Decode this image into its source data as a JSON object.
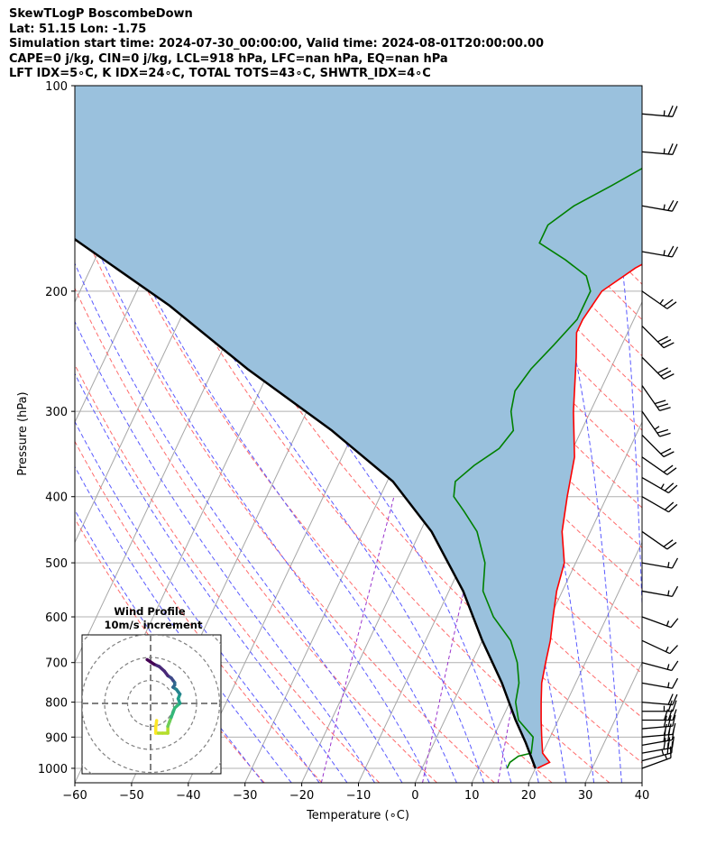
{
  "header": {
    "line1": "SkewTLogP BoscombeDown",
    "line2": "Lat: 51.15   Lon: -1.75",
    "line3": "Simulation start time: 2024-07-30_00:00:00, Valid time: 2024-08-01T20:00:00.00",
    "line4": "CAPE=0 j/kg, CIN=0 j/kg, LCL=918 hPa, LFC=nan hPa, EQ=nan hPa",
    "line5": "LFT IDX=5∘C, K IDX=24∘C, TOTAL TOTS=43∘C, SHWTR_IDX=4∘C"
  },
  "chart_data": {
    "type": "line",
    "xlabel": "Temperature (∘C)",
    "ylabel": "Pressure (hPa)",
    "xlim": [
      -60,
      40
    ],
    "ylim": [
      1050,
      100
    ],
    "y_log_scale": true,
    "skew": true,
    "x_ticks": [
      -60,
      -50,
      -40,
      -30,
      -20,
      -10,
      0,
      10,
      20,
      30,
      40
    ],
    "y_ticks": [
      100,
      200,
      300,
      400,
      500,
      600,
      700,
      800,
      900,
      1000
    ],
    "grid": true,
    "series": [
      {
        "color": "#ff0000",
        "points": [
          [
            20.3,
            1000
          ],
          [
            22,
            980
          ],
          [
            20,
            950
          ],
          [
            18.5,
            900
          ],
          [
            17,
            850
          ],
          [
            15.5,
            800
          ],
          [
            14,
            750
          ],
          [
            13,
            700
          ],
          [
            12,
            650
          ],
          [
            10.5,
            600
          ],
          [
            9,
            550
          ],
          [
            8,
            500
          ],
          [
            5,
            450
          ],
          [
            3,
            400
          ],
          [
            1,
            350
          ],
          [
            -3,
            300
          ],
          [
            -7,
            250
          ],
          [
            -9,
            230
          ],
          [
            -9,
            220
          ],
          [
            -8,
            200
          ],
          [
            -4,
            185
          ],
          [
            2,
            170
          ],
          [
            4,
            160
          ],
          [
            4,
            150
          ],
          [
            7,
            140
          ],
          [
            11,
            130
          ],
          [
            11,
            120
          ],
          [
            12,
            110
          ],
          [
            14,
            100
          ]
        ]
      },
      {
        "color": "#008000",
        "points": [
          [
            15,
            1000
          ],
          [
            15,
            980
          ],
          [
            16,
            960
          ],
          [
            18,
            950
          ],
          [
            17,
            900
          ],
          [
            13,
            850
          ],
          [
            11,
            800
          ],
          [
            10,
            750
          ],
          [
            8,
            700
          ],
          [
            5,
            650
          ],
          [
            0,
            600
          ],
          [
            -4,
            550
          ],
          [
            -6,
            500
          ],
          [
            -10,
            450
          ],
          [
            -14,
            420
          ],
          [
            -17,
            400
          ],
          [
            -18,
            380
          ],
          [
            -16,
            360
          ],
          [
            -13,
            340
          ],
          [
            -12,
            320
          ],
          [
            -14,
            300
          ],
          [
            -15,
            280
          ],
          [
            -14,
            260
          ],
          [
            -12,
            240
          ],
          [
            -10,
            220
          ],
          [
            -10,
            200
          ],
          [
            -12,
            190
          ],
          [
            -17,
            180
          ],
          [
            -23,
            170
          ],
          [
            -23,
            160
          ],
          [
            -20,
            150
          ],
          [
            -15,
            140
          ],
          [
            -10,
            130
          ],
          [
            -7,
            120
          ],
          [
            -3,
            110
          ],
          [
            0,
            100
          ]
        ]
      },
      {
        "color": "#000000",
        "points": [
          [
            20,
            1000
          ],
          [
            16.2,
            918
          ],
          [
            12.5,
            850
          ],
          [
            7,
            750
          ],
          [
            0,
            650
          ],
          [
            -7.5,
            550
          ],
          [
            -18,
            450
          ],
          [
            -29,
            380
          ],
          [
            -44,
            320
          ],
          [
            -64,
            260
          ],
          [
            -83,
            210
          ],
          [
            -104,
            170
          ],
          [
            -123,
            140
          ],
          [
            -140,
            120
          ],
          [
            -159,
            100
          ]
        ]
      }
    ],
    "shaded_region": {
      "color": "#9ac1dd",
      "between": "temperature and parcel"
    },
    "isotherms": {
      "color": "#999999",
      "step_c": 10
    },
    "dry_adiabats": {
      "color": "#ff4444",
      "style": "dashed"
    },
    "moist_adiabats": {
      "color": "#4444ff",
      "style": "dashed"
    },
    "mixing_ratio": {
      "color": "#9932cc",
      "style": "dashed"
    },
    "wind_barbs": [
      {
        "p": 1000,
        "speed_kt": 15,
        "dir_deg": 250
      },
      {
        "p": 975,
        "speed_kt": 25,
        "dir_deg": 255
      },
      {
        "p": 950,
        "speed_kt": 30,
        "dir_deg": 260
      },
      {
        "p": 925,
        "speed_kt": 30,
        "dir_deg": 260
      },
      {
        "p": 900,
        "speed_kt": 30,
        "dir_deg": 265
      },
      {
        "p": 875,
        "speed_kt": 30,
        "dir_deg": 265
      },
      {
        "p": 850,
        "speed_kt": 30,
        "dir_deg": 270
      },
      {
        "p": 825,
        "speed_kt": 25,
        "dir_deg": 270
      },
      {
        "p": 800,
        "speed_kt": 20,
        "dir_deg": 275
      },
      {
        "p": 750,
        "speed_kt": 15,
        "dir_deg": 280
      },
      {
        "p": 700,
        "speed_kt": 15,
        "dir_deg": 285
      },
      {
        "p": 650,
        "speed_kt": 15,
        "dir_deg": 295
      },
      {
        "p": 600,
        "speed_kt": 15,
        "dir_deg": 290
      },
      {
        "p": 550,
        "speed_kt": 15,
        "dir_deg": 280
      },
      {
        "p": 500,
        "speed_kt": 15,
        "dir_deg": 280
      },
      {
        "p": 450,
        "speed_kt": 20,
        "dir_deg": 305
      },
      {
        "p": 400,
        "speed_kt": 20,
        "dir_deg": 300
      },
      {
        "p": 375,
        "speed_kt": 25,
        "dir_deg": 300
      },
      {
        "p": 350,
        "speed_kt": 20,
        "dir_deg": 305
      },
      {
        "p": 325,
        "speed_kt": 20,
        "dir_deg": 315
      },
      {
        "p": 300,
        "speed_kt": 25,
        "dir_deg": 325
      },
      {
        "p": 275,
        "speed_kt": 30,
        "dir_deg": 325
      },
      {
        "p": 250,
        "speed_kt": 30,
        "dir_deg": 315
      },
      {
        "p": 225,
        "speed_kt": 30,
        "dir_deg": 315
      },
      {
        "p": 200,
        "speed_kt": 25,
        "dir_deg": 305
      },
      {
        "p": 175,
        "speed_kt": 25,
        "dir_deg": 280
      },
      {
        "p": 150,
        "speed_kt": 25,
        "dir_deg": 280
      },
      {
        "p": 125,
        "speed_kt": 25,
        "dir_deg": 275
      },
      {
        "p": 110,
        "speed_kt": 25,
        "dir_deg": 275
      }
    ],
    "hodograph": {
      "title": "Wind Profile",
      "subtitle": "10m/s increment",
      "ring_step_ms": 10,
      "ring_count": 3,
      "colormap": "viridis",
      "points": [
        [
          3.5,
          -5.5
        ],
        [
          3,
          -8.5
        ],
        [
          3,
          -11
        ],
        [
          4.5,
          -11
        ],
        [
          7,
          -11
        ],
        [
          10,
          -11
        ],
        [
          10,
          -8
        ],
        [
          11,
          -6
        ],
        [
          12,
          -4
        ],
        [
          13,
          -2
        ],
        [
          14,
          0
        ],
        [
          17,
          2
        ],
        [
          16,
          4
        ],
        [
          17,
          6
        ],
        [
          16,
          7
        ],
        [
          15,
          8
        ],
        [
          13,
          9
        ],
        [
          14,
          10
        ],
        [
          14,
          11
        ],
        [
          13,
          12
        ],
        [
          12,
          13
        ],
        [
          10,
          14
        ],
        [
          8,
          16
        ],
        [
          5,
          18
        ],
        [
          2,
          19
        ],
        [
          0,
          20
        ],
        [
          -2,
          21
        ]
      ]
    }
  }
}
